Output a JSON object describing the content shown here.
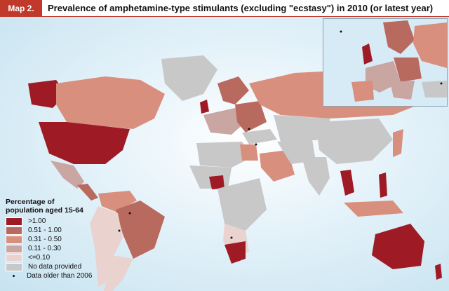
{
  "header": {
    "map_label": "Map 2.",
    "title": "Prevalence of amphetamine-type stimulants (excluding \"ecstasy\") in 2010 (or latest year)"
  },
  "legend": {
    "title_line1": "Percentage of",
    "title_line2": "population aged 15-64",
    "items": [
      {
        "label": ">1.00",
        "color": "#9e1b25"
      },
      {
        "label": "0.51 - 1.00",
        "color": "#b86a5f"
      },
      {
        "label": "0.31 - 0.50",
        "color": "#d98f7d"
      },
      {
        "label": "0.11 - 0.30",
        "color": "#c9a6a2"
      },
      {
        "label": "<=0.10",
        "color": "#ead3cf"
      },
      {
        "label": "No data provided",
        "color": "#c8c8c8"
      }
    ],
    "dot_label": "Data older than 2006"
  },
  "colors": {
    "ocean": "#d6ebf5",
    "high": "#9e1b25",
    "midhigh": "#b86a5f",
    "mid": "#d98f7d",
    "low": "#c9a6a2",
    "verylow": "#ead3cf",
    "nodata": "#c8c8c8"
  }
}
